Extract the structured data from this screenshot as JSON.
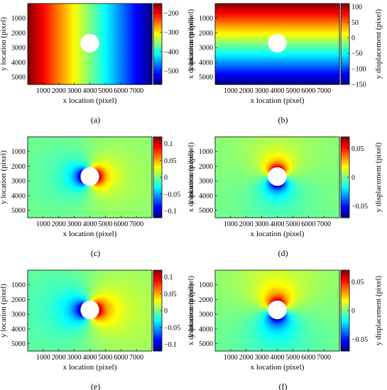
{
  "figure": {
    "panels": [
      "a",
      "b",
      "c",
      "d",
      "e",
      "f"
    ]
  },
  "chart_data": [
    {
      "panel": "a",
      "caption": "(a)",
      "type": "heatmap",
      "xlabel": "x location (pixel)",
      "ylabel": "y location (pixel)",
      "colorbar_label": "x displacement (pixel)",
      "xlim": [
        0,
        8000
      ],
      "ylim": [
        0,
        5500
      ],
      "clim": [
        -570,
        -150
      ],
      "x_ticks": [
        1000,
        2000,
        3000,
        4000,
        5000,
        6000,
        7000
      ],
      "y_ticks": [
        1000,
        2000,
        3000,
        4000,
        5000
      ],
      "colorbar_ticks": [
        -200,
        -300,
        -400,
        -500
      ],
      "hole": {
        "x": 4000,
        "y": 2700,
        "r": 600
      },
      "field": "linear-x",
      "from": -150,
      "to": -570
    },
    {
      "panel": "b",
      "caption": "(b)",
      "type": "heatmap",
      "xlabel": "x location (pixel)",
      "ylabel": "y location (pixel)",
      "colorbar_label": "y displacement (pixel)",
      "xlim": [
        0,
        8000
      ],
      "ylim": [
        0,
        5500
      ],
      "clim": [
        -150,
        110
      ],
      "x_ticks": [
        1000,
        2000,
        3000,
        4000,
        5000,
        6000,
        7000
      ],
      "y_ticks": [
        1000,
        2000,
        3000,
        4000,
        5000
      ],
      "colorbar_ticks": [
        100,
        50,
        0,
        -50,
        -100,
        -150
      ],
      "hole": {
        "x": 4000,
        "y": 2700,
        "r": 600
      },
      "field": "linear-y",
      "from": 110,
      "to": -150
    },
    {
      "panel": "c",
      "caption": "(c)",
      "type": "heatmap",
      "xlabel": "x location (pixel)",
      "ylabel": "y location (pixel)",
      "colorbar_label": "x displacement (pixel)",
      "xlim": [
        0,
        8000
      ],
      "ylim": [
        0,
        5500
      ],
      "clim": [
        -0.12,
        0.12
      ],
      "x_ticks": [
        1000,
        2000,
        3000,
        4000,
        5000,
        6000,
        7000
      ],
      "y_ticks": [
        1000,
        2000,
        3000,
        4000,
        5000
      ],
      "colorbar_ticks": [
        0.1,
        0.05,
        0,
        -0.05,
        -0.1
      ],
      "hole": {
        "x": 4000,
        "y": 2700,
        "r": 600
      },
      "field": "dipole-x",
      "amp": 0.12,
      "spread": 1.0
    },
    {
      "panel": "d",
      "caption": "(d)",
      "type": "heatmap",
      "xlabel": "x location (pixel)",
      "ylabel": "y location (pixel)",
      "colorbar_label": "y displacement (pixel)",
      "xlim": [
        0,
        8000
      ],
      "ylim": [
        0,
        5500
      ],
      "clim": [
        -0.07,
        0.07
      ],
      "x_ticks": [
        1000,
        2000,
        3000,
        4000,
        5000,
        6000,
        7000
      ],
      "y_ticks": [
        1000,
        2000,
        3000,
        4000,
        5000
      ],
      "colorbar_ticks": [
        0.05,
        0,
        -0.05
      ],
      "hole": {
        "x": 4000,
        "y": 2700,
        "r": 600
      },
      "field": "dipole-y",
      "amp": 0.07,
      "spread": 1.0
    },
    {
      "panel": "e",
      "caption": "(e)",
      "type": "heatmap",
      "xlabel": "x location (pixel)",
      "ylabel": "y location (pixel)",
      "colorbar_label": "x displacement (pixel)",
      "xlim": [
        0,
        8000
      ],
      "ylim": [
        0,
        5500
      ],
      "clim": [
        -0.12,
        0.12
      ],
      "x_ticks": [
        1000,
        2000,
        3000,
        4000,
        5000,
        6000,
        7000
      ],
      "y_ticks": [
        1000,
        2000,
        3000,
        4000,
        5000
      ],
      "colorbar_ticks": [
        0.1,
        0.05,
        0,
        -0.05,
        -0.1
      ],
      "hole": {
        "x": 4000,
        "y": 2700,
        "r": 600
      },
      "field": "dipole-x",
      "amp": 0.12,
      "spread": 0.8
    },
    {
      "panel": "f",
      "caption": "(f)",
      "type": "heatmap",
      "xlabel": "x location (pixel)",
      "ylabel": "y location (pixel)",
      "colorbar_label": "y displacement (pixel)",
      "xlim": [
        0,
        8000
      ],
      "ylim": [
        0,
        5500
      ],
      "clim": [
        -0.07,
        0.07
      ],
      "x_ticks": [
        1000,
        2000,
        3000,
        4000,
        5000,
        6000,
        7000
      ],
      "y_ticks": [
        1000,
        2000,
        3000,
        4000,
        5000
      ],
      "colorbar_ticks": [
        0.05,
        0,
        -0.05
      ],
      "hole": {
        "x": 4000,
        "y": 2700,
        "r": 600
      },
      "field": "dipole-y",
      "amp": 0.07,
      "spread": 0.8
    }
  ]
}
